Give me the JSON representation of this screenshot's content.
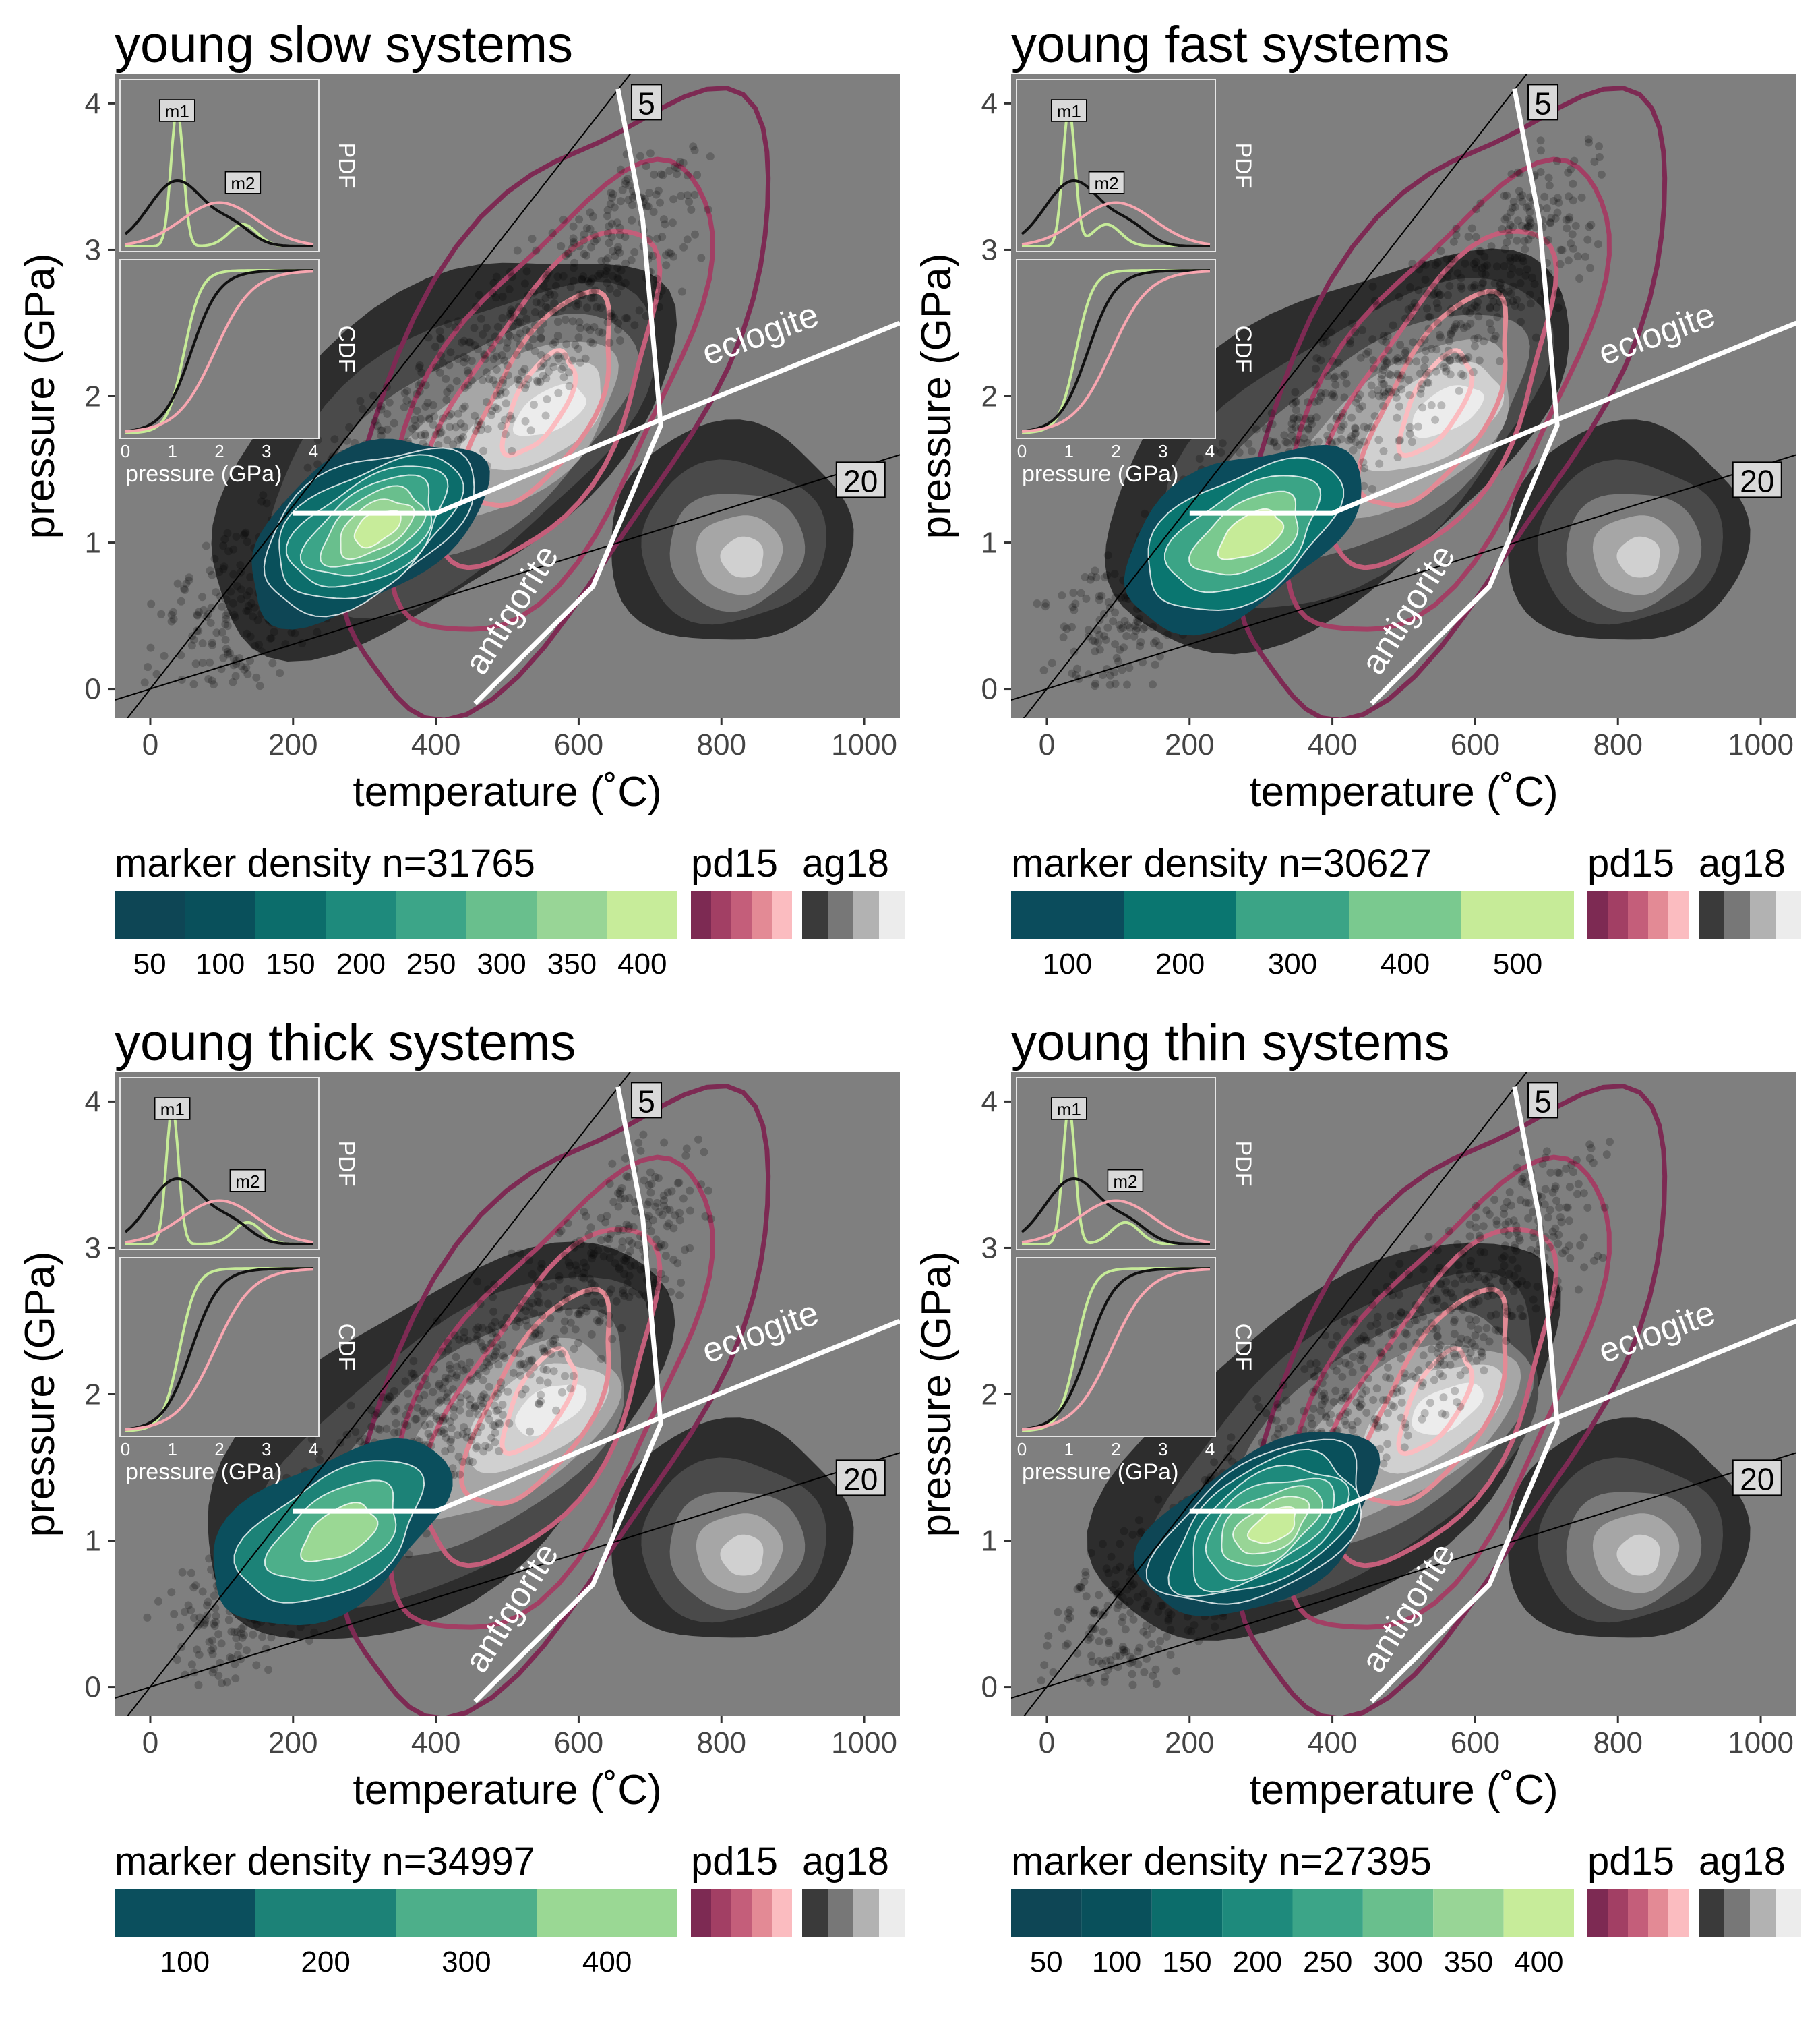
{
  "figure": {
    "xlabel": "temperature (˚C)",
    "ylabel": "pressure (GPa)",
    "x_ticks": [
      0,
      200,
      400,
      600,
      800,
      1000
    ],
    "y_ticks": [
      0,
      1,
      2,
      3,
      4
    ],
    "xlim": [
      -50,
      1050
    ],
    "ylim": [
      -0.2,
      4.2
    ],
    "inset": {
      "pdf_label": "PDF",
      "cdf_label": "CDF",
      "xlabel": "pressure (GPa)",
      "ticks": [
        0,
        1,
        2,
        3,
        4
      ],
      "m1_label": "m1",
      "m2_label": "m2"
    },
    "lines": {
      "geotherm_steep_label": "5",
      "geotherm_shallow_label": "20",
      "eclogite_label": "eclogite",
      "antigorite_label": "antigorite",
      "eclogite_boundary": [
        [
          200,
          1.2
        ],
        [
          400,
          1.2
        ],
        [
          720,
          1.85
        ],
        [
          1050,
          2.5
        ]
      ],
      "antigorite_boundary": [
        [
          455,
          -0.1
        ],
        [
          620,
          0.7
        ],
        [
          715,
          1.8
        ],
        [
          690,
          3.2
        ],
        [
          655,
          4.1
        ]
      ]
    },
    "legend": {
      "pd15_label": "pd15",
      "ag18_label": "ag18",
      "pd15_colors": [
        "#7d2a53",
        "#a23f64",
        "#c45e7a",
        "#e38a95",
        "#fbbcc0"
      ],
      "ag18_colors": [
        "#3a3a3a",
        "#777777",
        "#b2b2b2",
        "#ececec"
      ]
    },
    "colors": {
      "panel_bg": "#7f7f7f",
      "marker_low": "#0d4a5c",
      "marker_high": "#c6eb98",
      "pd15_line": "#9b3a60",
      "ag18_fill": "#2d2d2d",
      "boundary_line": "#ffffff",
      "cdf_black": "#111111",
      "cdf_pink": "#f7a6b0",
      "cdf_green": "#c6eb98"
    }
  },
  "chart_data": [
    {
      "type": "area",
      "title": "young slow systems",
      "n_label": "marker density n=31765",
      "density_breaks": [
        50,
        100,
        150,
        200,
        250,
        300,
        350,
        400
      ],
      "density_colors": [
        "#0e4655",
        "#09505b",
        "#0c6d6b",
        "#1e8a7c",
        "#3ca588",
        "#69bf8d",
        "#98d596",
        "#c7ec9a"
      ],
      "marker_center": [
        300,
        1.1
      ],
      "pdf_modes_gpa": {
        "m1": 1.1,
        "m2": 2.5
      }
    },
    {
      "type": "area",
      "title": "young fast systems",
      "n_label": "marker density n=30627",
      "density_breaks": [
        100,
        200,
        300,
        400,
        500
      ],
      "density_colors": [
        "#0b4c5c",
        "#0a7670",
        "#3ba486",
        "#7ac98f",
        "#c6eb98"
      ],
      "marker_center": [
        270,
        1.05
      ],
      "pdf_modes_gpa": {
        "m1": 1.0,
        "m2": 1.8
      }
    },
    {
      "type": "area",
      "title": "young thick systems",
      "n_label": "marker density n=34997",
      "density_breaks": [
        100,
        200,
        300,
        400
      ],
      "density_colors": [
        "#0b4f5d",
        "#1c8277",
        "#4daf8a",
        "#9ad894"
      ],
      "marker_center": [
        250,
        1.05
      ],
      "pdf_modes_gpa": {
        "m1": 1.0,
        "m2": 2.6
      }
    },
    {
      "type": "area",
      "title": "young thin systems",
      "n_label": "marker density n=27395",
      "density_breaks": [
        50,
        100,
        150,
        200,
        250,
        300,
        350,
        400
      ],
      "density_colors": [
        "#0e4655",
        "#09505b",
        "#0c6d6b",
        "#1e8a7c",
        "#3ca588",
        "#69bf8d",
        "#98d596",
        "#c7ec9a"
      ],
      "marker_center": [
        300,
        1.1
      ],
      "pdf_modes_gpa": {
        "m1": 1.0,
        "m2": 2.2
      }
    }
  ]
}
